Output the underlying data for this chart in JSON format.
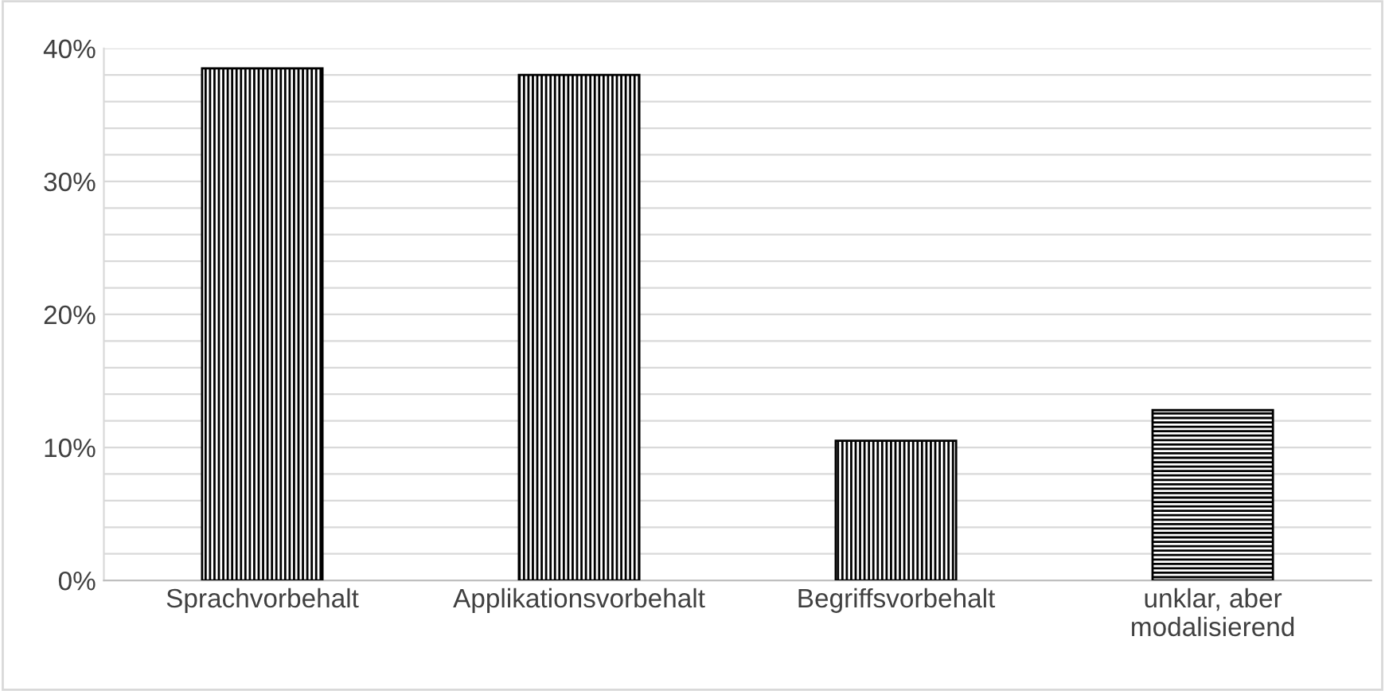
{
  "chart_data": {
    "type": "bar",
    "categories": [
      "Sprachvorbehalt",
      "Applikationsvorbehalt",
      "Begriffsvorbehalt",
      "unklar, aber\nmodalisierend"
    ],
    "values": [
      38.5,
      38.0,
      10.5,
      12.8
    ],
    "colors": [
      "#000000",
      "#000000",
      "#000000",
      "#000000"
    ],
    "ylim": [
      0,
      40
    ],
    "yticks": [
      {
        "value": 0,
        "label": "0%"
      },
      {
        "value": 2,
        "label": null
      },
      {
        "value": 4,
        "label": null
      },
      {
        "value": 6,
        "label": null
      },
      {
        "value": 8,
        "label": null
      },
      {
        "value": 10,
        "label": "10%"
      },
      {
        "value": 12,
        "label": null
      },
      {
        "value": 14,
        "label": null
      },
      {
        "value": 16,
        "label": null
      },
      {
        "value": 18,
        "label": null
      },
      {
        "value": 20,
        "label": "20%"
      },
      {
        "value": 22,
        "label": null
      },
      {
        "value": 24,
        "label": null
      },
      {
        "value": 26,
        "label": null
      },
      {
        "value": 28,
        "label": null
      },
      {
        "value": 30,
        "label": "30%"
      },
      {
        "value": 32,
        "label": null
      },
      {
        "value": 34,
        "label": null
      },
      {
        "value": 36,
        "label": null
      },
      {
        "value": 38,
        "label": null
      },
      {
        "value": 40,
        "label": "40%"
      }
    ],
    "grid": "y"
  }
}
